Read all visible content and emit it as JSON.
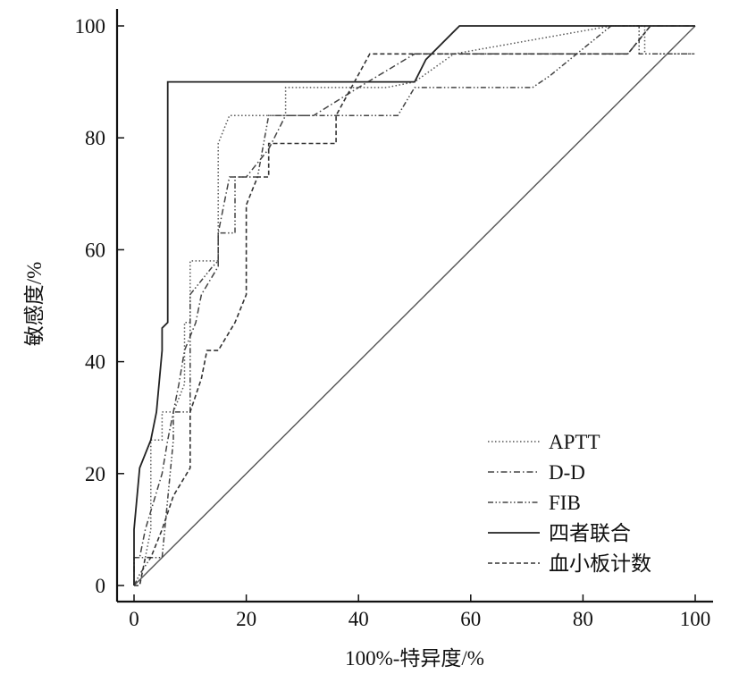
{
  "chart_data": {
    "type": "line",
    "title": "",
    "xlabel": "100%-特异度/%",
    "ylabel": "敏感度/%",
    "xlim": [
      0,
      100
    ],
    "ylim": [
      0,
      100
    ],
    "x_ticks": [
      "0",
      "20",
      "40",
      "60",
      "80",
      "100"
    ],
    "y_ticks": [
      "0",
      "20",
      "40",
      "60",
      "80",
      "100"
    ],
    "grid": false,
    "legend_position": "bottom-right",
    "reference_line": {
      "x": [
        0,
        100
      ],
      "y": [
        0,
        100
      ]
    },
    "series": [
      {
        "name": "APTT",
        "style": "dotted",
        "x": [
          0,
          0,
          2,
          3,
          3,
          5,
          5,
          7,
          9,
          9,
          10,
          10,
          13,
          15,
          15,
          17,
          27,
          27,
          35,
          45,
          50,
          57,
          85,
          91,
          91,
          100
        ],
        "y": [
          0,
          5,
          5,
          10,
          26,
          26,
          31,
          31,
          36,
          47,
          47,
          58,
          58,
          58,
          79,
          84,
          84,
          89,
          89,
          89,
          90,
          95,
          100,
          100,
          95,
          95
        ]
      },
      {
        "name": "D-D",
        "style": "dashdot",
        "x": [
          0,
          0,
          1,
          2,
          5,
          6,
          6,
          7,
          8,
          9,
          11,
          12,
          15,
          15,
          16,
          17,
          20,
          24,
          27,
          32,
          40,
          50,
          57,
          60,
          70,
          85,
          88,
          88,
          92,
          100
        ],
        "y": [
          0,
          5,
          5,
          10,
          20,
          26,
          26,
          31,
          36,
          42,
          47,
          52,
          57,
          63,
          68,
          73,
          73,
          78,
          84,
          84,
          89,
          95,
          95,
          95,
          95,
          95,
          95,
          95,
          100,
          100
        ]
      },
      {
        "name": "FIB",
        "style": "dashdotdot",
        "x": [
          0,
          1,
          3,
          5,
          7,
          7,
          10,
          10,
          14,
          15,
          15,
          18,
          18,
          22,
          24,
          24,
          39,
          40,
          40,
          47,
          50,
          51,
          71,
          74,
          85,
          90,
          90,
          100
        ],
        "y": [
          0,
          2,
          5,
          5,
          26,
          31,
          31,
          52,
          57,
          58,
          63,
          63,
          73,
          73,
          84,
          84,
          84,
          84,
          84,
          84,
          89,
          89,
          89,
          91,
          100,
          100,
          95,
          95
        ]
      },
      {
        "name": "四者联合",
        "style": "solid",
        "x": [
          0,
          0,
          1,
          3,
          4,
          5,
          5,
          6,
          6,
          40,
          50,
          52,
          58,
          100
        ],
        "y": [
          0,
          10,
          21,
          26,
          31,
          42,
          46,
          47,
          90,
          90,
          90,
          94,
          100,
          100
        ]
      },
      {
        "name": "血小板计数",
        "style": "dashed",
        "x": [
          0,
          1,
          2,
          3,
          5,
          7,
          10,
          10,
          12,
          13,
          15,
          15,
          18,
          20,
          20,
          22,
          24,
          24,
          28,
          36,
          36,
          42,
          70,
          88,
          92,
          100
        ],
        "y": [
          0,
          0,
          5,
          5,
          10,
          16,
          21,
          31,
          37,
          42,
          42,
          42,
          47,
          52,
          68,
          73,
          73,
          79,
          79,
          79,
          84,
          95,
          95,
          95,
          100,
          100
        ]
      }
    ]
  }
}
